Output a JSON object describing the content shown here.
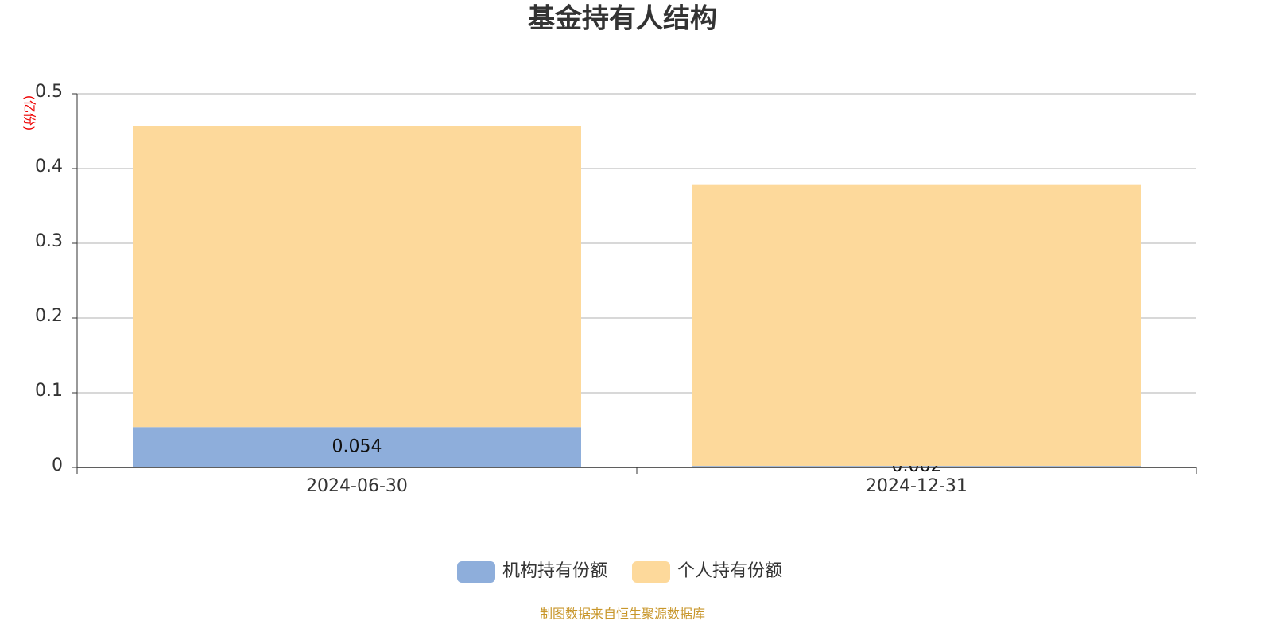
{
  "chart_data": {
    "type": "stacked_bar",
    "title": "基金持有人结构",
    "y_label": "(亿份)",
    "categories": [
      "2024-06-30",
      "2024-12-31"
    ],
    "series": [
      {
        "name": "机构持有份额",
        "color": "#8eaedb",
        "values": [
          0.054,
          0.002
        ],
        "show_labels": true
      },
      {
        "name": "个人持有份额",
        "color": "#fdd99b",
        "values": [
          0.403,
          0.376
        ],
        "show_labels": false
      }
    ],
    "ylim": [
      0,
      0.5
    ],
    "yticks": [
      0,
      0.1,
      0.2,
      0.3,
      0.4,
      0.5
    ],
    "grid": true,
    "legend": "bottom",
    "source": "制图数据来自恒生聚源数据库"
  }
}
